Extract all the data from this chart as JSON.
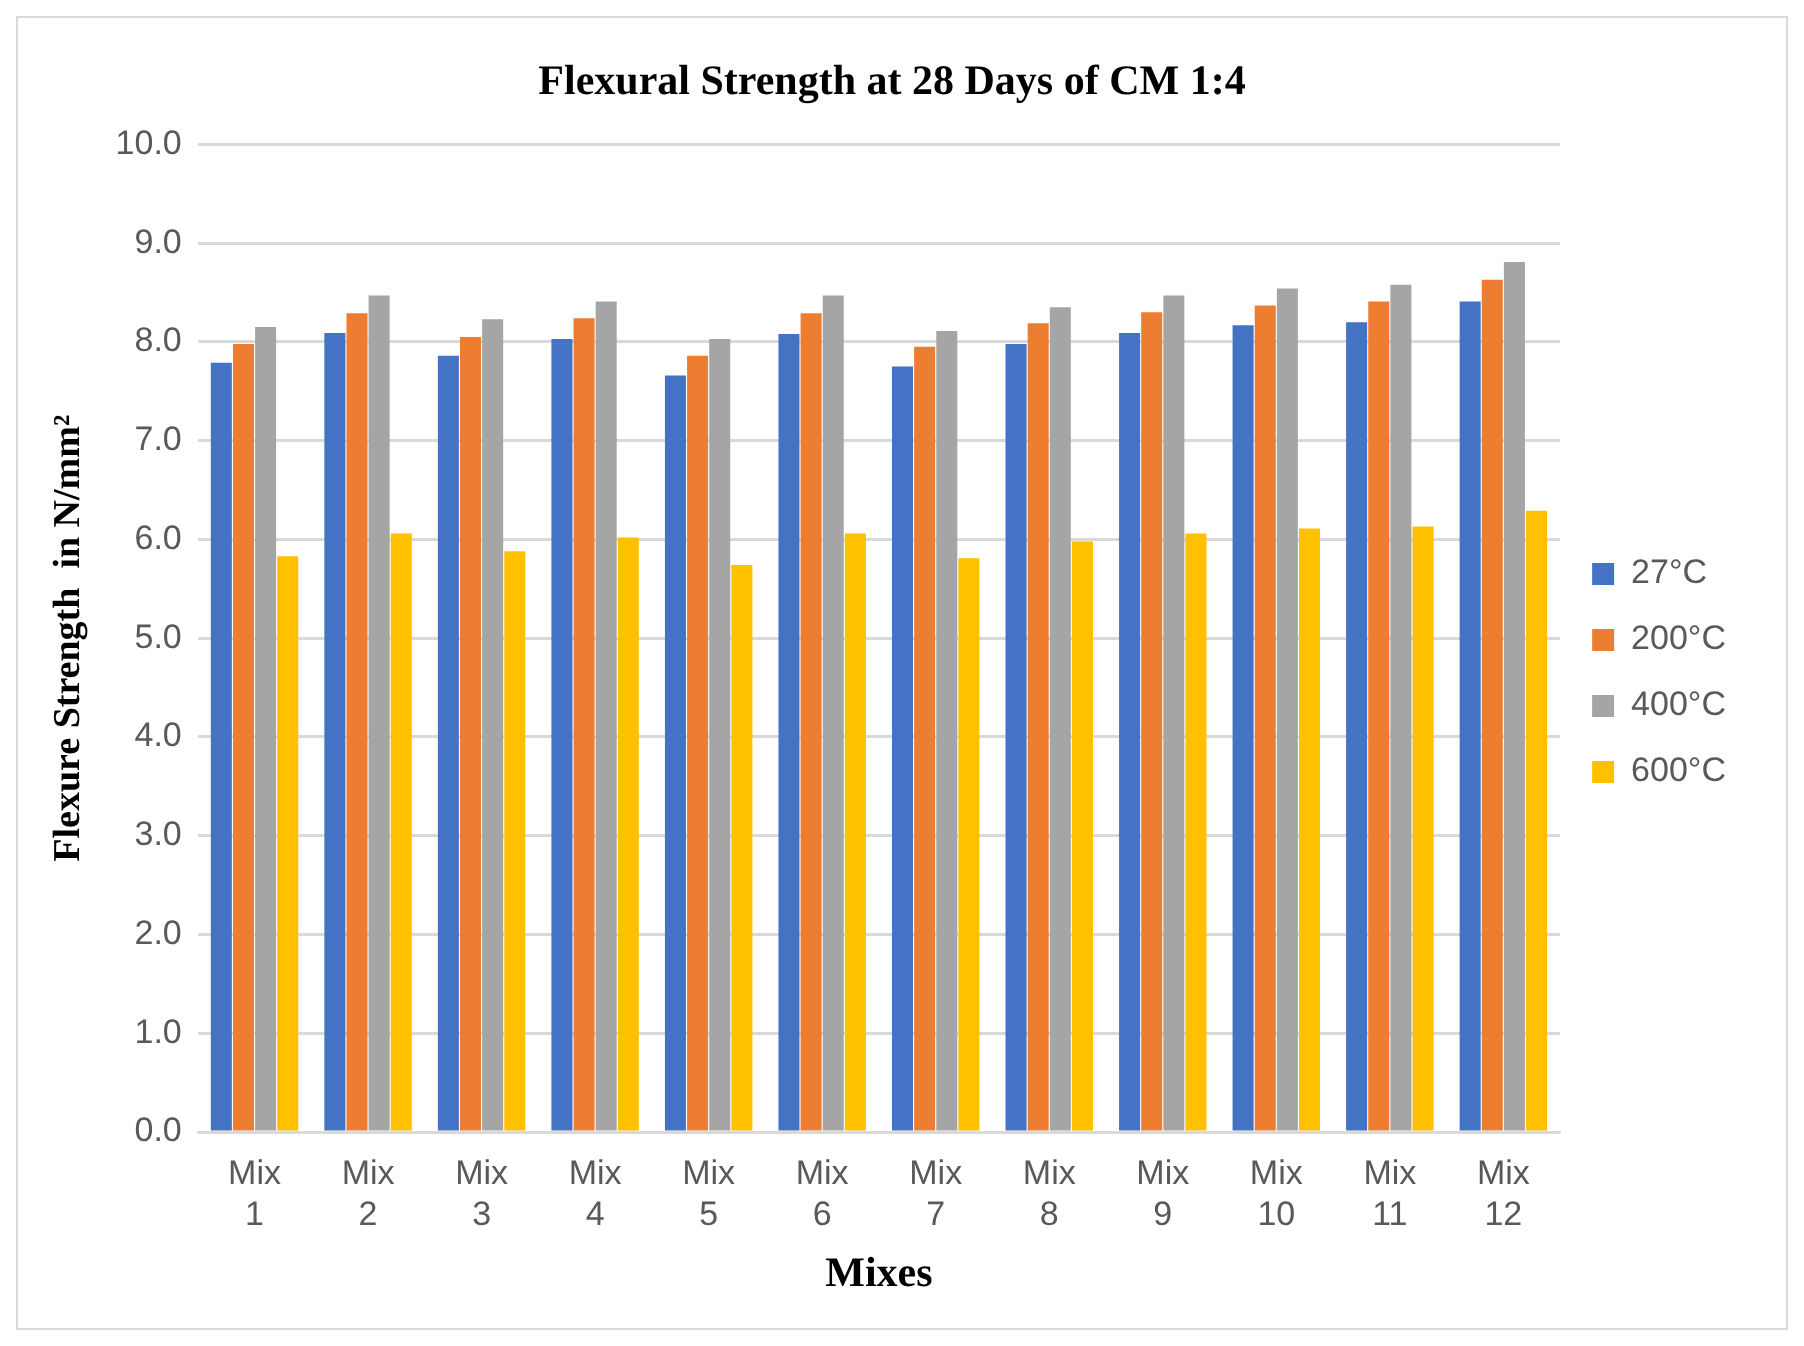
{
  "chart_data": {
    "type": "bar",
    "title": "Flexural Strength at 28 Days of CM 1:4",
    "xlabel": "Mixes",
    "ylabel": "Flexure Strength  in N/mm²",
    "categories": [
      "Mix 1",
      "Mix 2",
      "Mix 3",
      "Mix 4",
      "Mix 5",
      "Mix 6",
      "Mix 7",
      "Mix 8",
      "Mix 9",
      "Mix 10",
      "Mix 11",
      "Mix 12"
    ],
    "series": [
      {
        "name": "27°C",
        "color": "#4472c4",
        "values": [
          7.79,
          8.09,
          7.86,
          8.03,
          7.66,
          8.08,
          7.75,
          7.98,
          8.09,
          8.17,
          8.2,
          8.41
        ]
      },
      {
        "name": "200°C",
        "color": "#ed7d31",
        "values": [
          7.98,
          8.29,
          8.05,
          8.24,
          7.86,
          8.29,
          7.95,
          8.19,
          8.3,
          8.37,
          8.41,
          8.63
        ]
      },
      {
        "name": "400°C",
        "color": "#a5a5a5",
        "values": [
          8.15,
          8.47,
          8.23,
          8.41,
          8.03,
          8.47,
          8.11,
          8.35,
          8.47,
          8.54,
          8.58,
          8.81
        ]
      },
      {
        "name": "600°C",
        "color": "#ffc000",
        "values": [
          5.83,
          6.06,
          5.88,
          6.02,
          5.74,
          6.06,
          5.81,
          5.98,
          6.06,
          6.11,
          6.13,
          6.29
        ]
      }
    ],
    "ylim": [
      0,
      10
    ],
    "yticks": [
      {
        "value": 0,
        "label": "0.0"
      },
      {
        "value": 1,
        "label": "1.0"
      },
      {
        "value": 2,
        "label": "2.0"
      },
      {
        "value": 3,
        "label": "3.0"
      },
      {
        "value": 4,
        "label": "4.0"
      },
      {
        "value": 5,
        "label": "5.0"
      },
      {
        "value": 6,
        "label": "6.0"
      },
      {
        "value": 7,
        "label": "7.0"
      },
      {
        "value": 8,
        "label": "8.0"
      },
      {
        "value": 9,
        "label": "9.0"
      },
      {
        "value": 10,
        "label": "10.0"
      }
    ],
    "grid": "y",
    "legend": "right"
  }
}
